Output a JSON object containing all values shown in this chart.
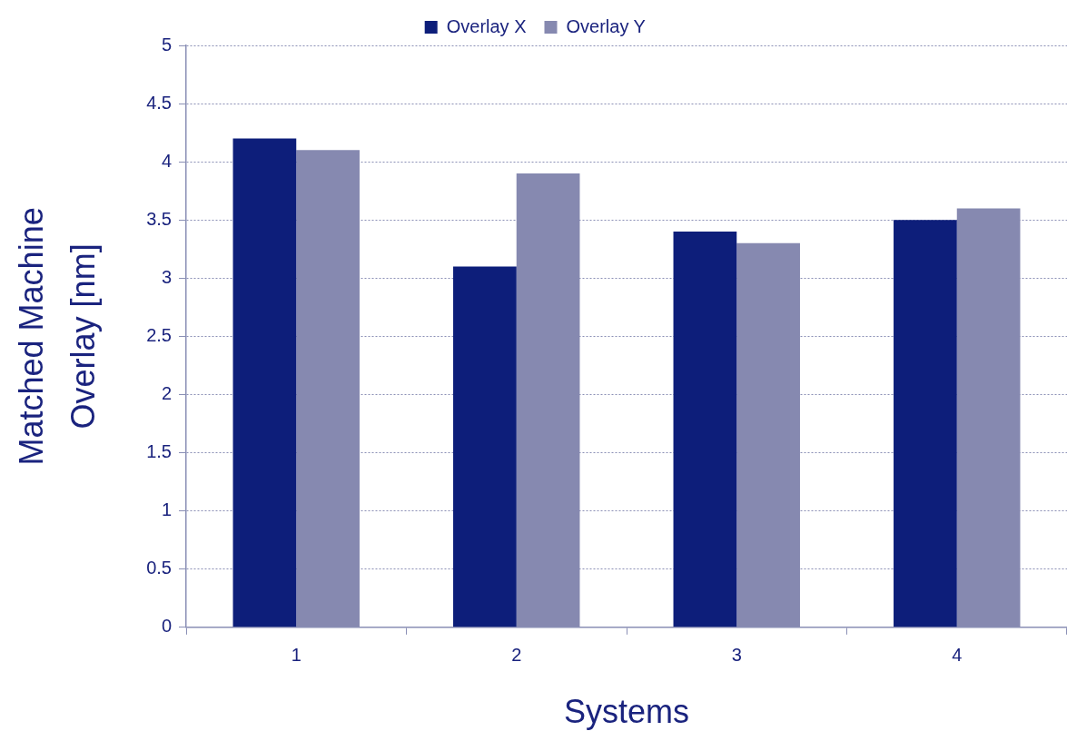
{
  "chart_data": {
    "type": "bar",
    "xlabel": "Systems",
    "ylabel": "Matched Machine\nOverlay [nm]",
    "categories": [
      "1",
      "2",
      "3",
      "4"
    ],
    "series": [
      {
        "name": "Overlay X",
        "color": "#0d1e7a",
        "values": [
          4.2,
          3.1,
          3.4,
          3.5
        ]
      },
      {
        "name": "Overlay Y",
        "color": "#8689b0",
        "values": [
          4.1,
          3.9,
          3.3,
          3.6
        ]
      }
    ],
    "ylim": [
      0,
      5
    ],
    "yticks": [
      0,
      0.5,
      1,
      1.5,
      2,
      2.5,
      3,
      3.5,
      4,
      4.5,
      5
    ],
    "grid": "y",
    "legend": "top"
  }
}
